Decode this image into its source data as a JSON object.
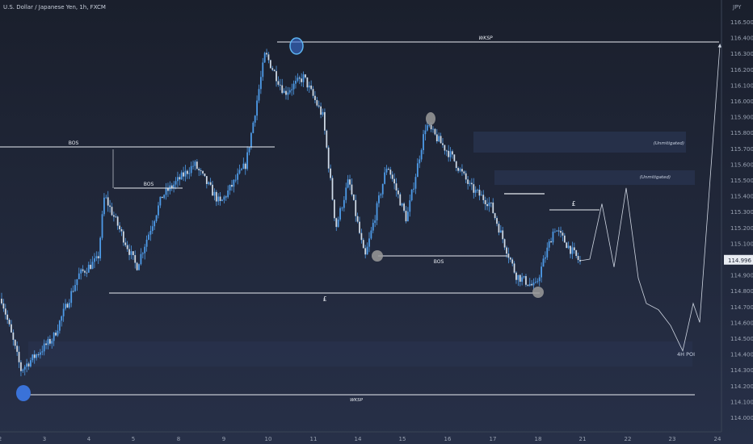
{
  "header": {
    "title": "U.S. Dollar / Japanese Yen, 1h, FXCM"
  },
  "axis": {
    "currency_label": "JPY"
  },
  "price_labels": [
    "116.500",
    "116.400",
    "116.300",
    "116.200",
    "116.100",
    "116.000",
    "115.900",
    "115.800",
    "115.700",
    "115.600",
    "115.500",
    "115.400",
    "115.300",
    "115.200",
    "115.100",
    "115.000",
    "114.900",
    "114.800",
    "114.700",
    "114.600",
    "114.500",
    "114.400",
    "114.300",
    "114.200",
    "114.100",
    "114.000"
  ],
  "current_price": "114.996",
  "date_labels": [
    "2",
    "3",
    "4",
    "5",
    "8",
    "9",
    "10",
    "11",
    "14",
    "15",
    "16",
    "17",
    "18",
    "21",
    "22",
    "23",
    "24"
  ],
  "annotations": {
    "wksp_top": "WKSP",
    "wksp_bottom": "WKSP",
    "bos_left": "BOS",
    "bos_mid": "BOS",
    "bos_right": "BOS",
    "liquidity_low": "£",
    "liquidity_high": "£",
    "unmitigated_1": "(Unmitigated)",
    "unmitigated_2": "(Unmitigated)",
    "poi": "4H POI"
  },
  "colors": {
    "background": "#1e2535",
    "candle": "#4e9be8",
    "line": "#e8ecf2",
    "zone": "#2a3450",
    "circle_gray": "#9a9a9a",
    "circle_blue": "#3a72d8",
    "current_price_bg": "#e8ecf2"
  },
  "chart_data": {
    "type": "candlestick",
    "title": "U.S. Dollar / Japanese Yen, 1h, FXCM",
    "ylabel": "JPY",
    "ylim": [
      114.0,
      116.55
    ],
    "x_ticks": [
      "2",
      "3",
      "4",
      "5",
      "8",
      "9",
      "10",
      "11",
      "14",
      "15",
      "16",
      "17",
      "18",
      "21",
      "22",
      "23",
      "24"
    ],
    "path_keypoints": [
      {
        "t": 0,
        "price": 114.75
      },
      {
        "t": 0.03,
        "price": 114.3
      },
      {
        "t": 0.08,
        "price": 114.5
      },
      {
        "t": 0.12,
        "price": 114.9
      },
      {
        "t": 0.15,
        "price": 115.0
      },
      {
        "t": 0.16,
        "price": 115.4
      },
      {
        "t": 0.21,
        "price": 114.95
      },
      {
        "t": 0.25,
        "price": 115.4
      },
      {
        "t": 0.3,
        "price": 115.6
      },
      {
        "t": 0.34,
        "price": 115.35
      },
      {
        "t": 0.38,
        "price": 115.6
      },
      {
        "t": 0.41,
        "price": 116.3
      },
      {
        "t": 0.44,
        "price": 116.05
      },
      {
        "t": 0.47,
        "price": 116.15
      },
      {
        "t": 0.5,
        "price": 115.9
      },
      {
        "t": 0.52,
        "price": 115.2
      },
      {
        "t": 0.54,
        "price": 115.5
      },
      {
        "t": 0.565,
        "price": 115.0
      },
      {
        "t": 0.6,
        "price": 115.6
      },
      {
        "t": 0.63,
        "price": 115.25
      },
      {
        "t": 0.66,
        "price": 115.85
      },
      {
        "t": 0.7,
        "price": 115.65
      },
      {
        "t": 0.73,
        "price": 115.45
      },
      {
        "t": 0.76,
        "price": 115.35
      },
      {
        "t": 0.8,
        "price": 114.9
      },
      {
        "t": 0.83,
        "price": 114.82
      },
      {
        "t": 0.86,
        "price": 115.2
      },
      {
        "t": 0.9,
        "price": 114.98
      }
    ],
    "projection": [
      {
        "price": 115.0
      },
      {
        "price": 115.35
      },
      {
        "price": 114.95
      },
      {
        "price": 115.45
      },
      {
        "price": 114.88
      },
      {
        "price": 114.72
      },
      {
        "price": 114.68
      },
      {
        "price": 114.58
      },
      {
        "price": 114.42
      },
      {
        "price": 114.72
      },
      {
        "price": 114.6
      },
      {
        "price": 116.35
      }
    ]
  }
}
